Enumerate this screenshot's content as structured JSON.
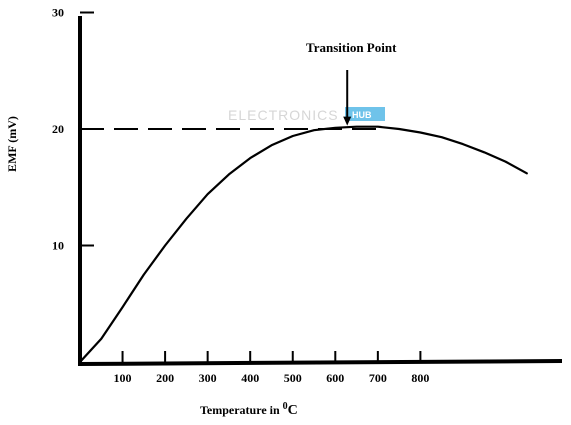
{
  "chart_data": {
    "type": "line",
    "title": "",
    "xlabel": "Temperature in ",
    "xlabel_superscript": "0",
    "xlabel_unit": "C",
    "ylabel": "EMF (mV)",
    "xlim": [
      0,
      1120
    ],
    "ylim": [
      0,
      30
    ],
    "x_ticks": [
      "100",
      "200",
      "300",
      "400",
      "500",
      "600",
      "700",
      "800"
    ],
    "y_ticks": [
      "10",
      "20",
      "30"
    ],
    "grid": false,
    "series": [
      {
        "name": "",
        "x": [
          0,
          50,
          100,
          150,
          200,
          250,
          300,
          350,
          400,
          450,
          500,
          550,
          600,
          650,
          700,
          750,
          800,
          850,
          900,
          950,
          1000,
          1050
        ],
        "y": [
          0,
          2.0,
          4.7,
          7.5,
          10.0,
          12.3,
          14.4,
          16.1,
          17.5,
          18.6,
          19.4,
          19.9,
          20.1,
          20.2,
          20.2,
          20.0,
          19.7,
          19.3,
          18.7,
          18.0,
          17.2,
          16.2
        ]
      }
    ],
    "reference_line": {
      "y": 20,
      "style": "dashed"
    },
    "annotation": {
      "text": "Transition Point",
      "x": 628,
      "y": 20.2
    },
    "watermark": {
      "text": "ELECTRONICS",
      "badge": "HUB"
    }
  }
}
